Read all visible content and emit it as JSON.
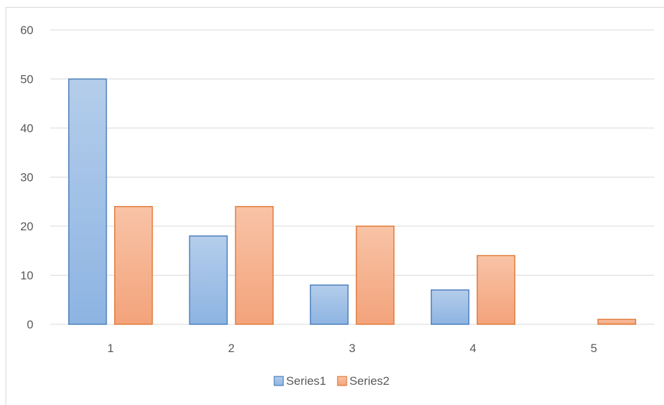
{
  "chart_data": {
    "type": "bar",
    "categories": [
      "1",
      "2",
      "3",
      "4",
      "5"
    ],
    "series": [
      {
        "name": "Series1",
        "values": [
          50,
          18,
          8,
          7,
          0
        ],
        "fill_top": "#b4cdeb",
        "fill_bottom": "#8db4e2",
        "stroke": "#4a7ebb"
      },
      {
        "name": "Series2",
        "values": [
          24,
          24,
          20,
          14,
          1
        ],
        "fill_top": "#f8c3a6",
        "fill_bottom": "#f3a37b",
        "stroke": "#e07b39"
      }
    ],
    "ylim": [
      0,
      60
    ],
    "yticks": [
      0,
      10,
      20,
      30,
      40,
      50,
      60
    ],
    "grid": true,
    "legend": "bottom",
    "gridline_color": "#d9d9d9"
  }
}
